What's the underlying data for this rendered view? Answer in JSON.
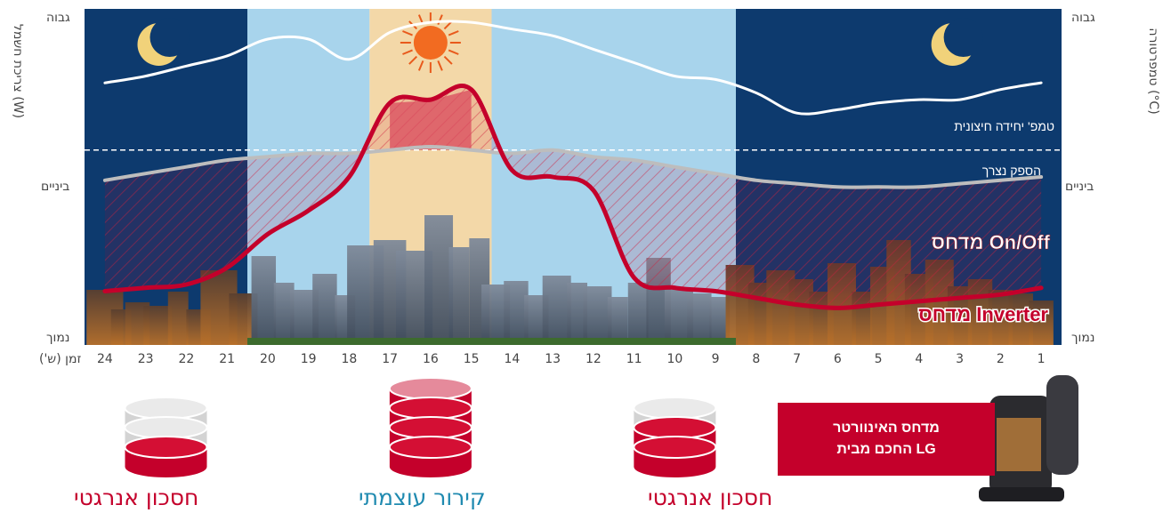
{
  "left_axis": {
    "title": "צריכת חשמל (W)",
    "high": "גבוה",
    "mid": "ביניים",
    "low": "נמוך"
  },
  "right_axis": {
    "title": "טמפרטורה (°C)",
    "high": "גבוה",
    "mid": "ביניים",
    "low": "נמוך"
  },
  "x_unit_label": "זמן (ש')",
  "colors": {
    "night": "#0d3a6e",
    "day": "#a8d4ec",
    "noon": "#f3d8a8",
    "inverter": "#c4002b",
    "onoff": "#bdbdbd",
    "outdoor": "#ffffff"
  },
  "chart_data": {
    "type": "line",
    "x_direction": "right-to-left",
    "x": [
      1,
      2,
      3,
      4,
      5,
      6,
      7,
      8,
      9,
      10,
      11,
      12,
      13,
      14,
      15,
      16,
      17,
      18,
      19,
      20,
      21,
      22,
      23,
      24
    ],
    "x_tick_labels": [
      "1",
      "2",
      "3",
      "4",
      "5",
      "6",
      "7",
      "8",
      "9",
      "10",
      "11",
      "12",
      "13",
      "14",
      "15",
      "16",
      "17",
      "18",
      "19",
      "20",
      "21",
      "22",
      "23",
      "24"
    ],
    "ylim": [
      0,
      100
    ],
    "y_ticks": {
      "low": 0,
      "mid": 58,
      "high": 100
    },
    "periods": [
      {
        "kind": "night",
        "from": 0.5,
        "to": 8.5
      },
      {
        "kind": "day",
        "from": 8.5,
        "to": 14.5
      },
      {
        "kind": "noon",
        "from": 14.5,
        "to": 17.5
      },
      {
        "kind": "day",
        "from": 17.5,
        "to": 20.5
      },
      {
        "kind": "night",
        "from": 20.5,
        "to": 24.5
      }
    ],
    "series": [
      {
        "name": "טמפ' יחידה חיצונית",
        "values": [
          78,
          76,
          73,
          73,
          72,
          70,
          69,
          75,
          79,
          80,
          84,
          88,
          92,
          94,
          96,
          96,
          93,
          85,
          91,
          91,
          86,
          83,
          80,
          78
        ]
      },
      {
        "name": "הספק נצרך",
        "values": [
          58,
          57,
          56,
          55,
          55,
          55,
          55,
          56,
          57,
          58,
          58,
          58,
          58,
          58,
          58,
          58,
          58,
          57,
          57,
          56,
          55,
          53,
          52,
          51
        ]
      },
      {
        "name": "מדחס On/Off",
        "values": [
          50,
          49,
          48,
          47,
          47,
          47,
          48,
          49,
          51,
          53,
          55,
          56,
          58,
          57,
          58,
          59,
          58,
          57,
          57,
          56,
          55,
          53,
          51,
          49
        ]
      },
      {
        "name": "מדחס Inverter",
        "values": [
          17,
          15,
          14,
          13,
          12,
          11,
          12,
          14,
          16,
          17,
          20,
          46,
          50,
          52,
          76,
          73,
          72,
          50,
          40,
          33,
          23,
          18,
          17,
          16
        ]
      }
    ],
    "annotations": [
      "טמפ' יחידה חיצונית",
      "הספק נצרך",
      "מדחס On/Off",
      "מדחס Inverter"
    ],
    "bottom_labels": [
      "חסכון אנרגטי",
      "קירור עוצמתי",
      "חסכון אנרגטי"
    ],
    "bottom_cylinders": [
      {
        "hour_pos": 22.5,
        "filled": 1,
        "total": 3
      },
      {
        "hour_pos": 16,
        "filled": 4,
        "total": 4
      },
      {
        "hour_pos": 10,
        "filled": 2,
        "total": 3
      }
    ]
  },
  "product_box": {
    "line1": "מדחס האינוורטר",
    "line2": "החכם מבית LG"
  }
}
